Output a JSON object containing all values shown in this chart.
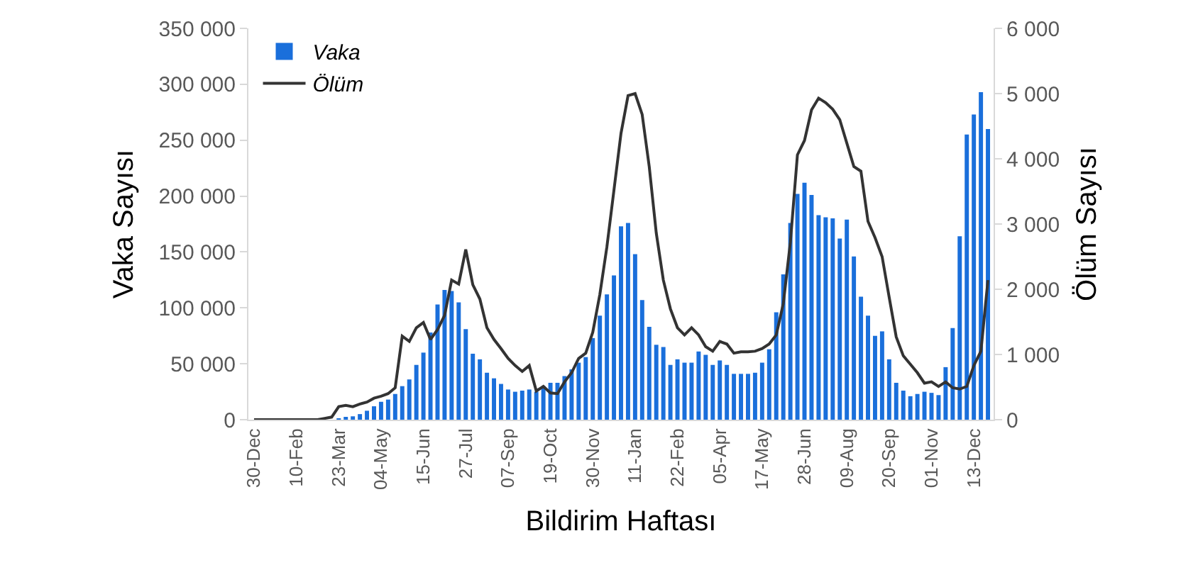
{
  "chart_data": {
    "type": "bar",
    "xlabel": "Bildirim Haftası",
    "ylabel": "Vaka Sayısı",
    "y2label": "Ölüm Sayısı",
    "legend": "top left",
    "categories": [
      "30-Dec",
      null,
      null,
      null,
      null,
      null,
      "10-Feb",
      null,
      null,
      null,
      null,
      null,
      "23-Mar",
      null,
      null,
      null,
      null,
      null,
      "04-May",
      null,
      null,
      null,
      null,
      null,
      "15-Jun",
      null,
      null,
      null,
      null,
      null,
      "27-Jul",
      null,
      null,
      null,
      null,
      null,
      "07-Sep",
      null,
      null,
      null,
      null,
      null,
      "19-Oct",
      null,
      null,
      null,
      null,
      null,
      "30-Nov",
      null,
      null,
      null,
      null,
      null,
      "11-Jan",
      null,
      null,
      null,
      null,
      null,
      "22-Feb",
      null,
      null,
      null,
      null,
      null,
      "05-Apr",
      null,
      null,
      null,
      null,
      null,
      "17-May",
      null,
      null,
      null,
      null,
      null,
      "28-Jun",
      null,
      null,
      null,
      null,
      null,
      "09-Aug",
      null,
      null,
      null,
      null,
      null,
      "20-Sep",
      null,
      null,
      null,
      null,
      null,
      "01-Nov",
      null,
      null,
      null,
      null,
      null,
      "13-Dec",
      null,
      null
    ],
    "ylim": [
      0,
      350000
    ],
    "yticks": [
      0,
      {
        "value": 50000,
        "label": "50 000"
      },
      {
        "value": 100000,
        "label": "100 000"
      },
      {
        "value": 150000,
        "label": "150 000"
      },
      {
        "value": 200000,
        "label": "200 000"
      },
      {
        "value": 250000,
        "label": "250 000"
      },
      {
        "value": 300000,
        "label": "300 000"
      },
      {
        "value": 350000,
        "label": "350 000"
      }
    ],
    "y2lim": [
      0,
      6000
    ],
    "y2ticks": [
      0,
      {
        "value": 1000,
        "label": "1 000"
      },
      {
        "value": 2000,
        "label": "2 000"
      },
      {
        "value": 3000,
        "label": "3 000"
      },
      {
        "value": 4000,
        "label": "4 000"
      },
      {
        "value": 5000,
        "label": "5 000"
      },
      {
        "value": 6000,
        "label": "6 000"
      }
    ],
    "series": [
      {
        "name": "Vaka",
        "color": "#1a6fdb",
        "values": [
          0,
          0,
          0,
          0,
          0,
          0,
          0,
          0,
          0,
          0,
          0,
          0,
          1000,
          2000,
          3000,
          5000,
          8000,
          12000,
          16000,
          18000,
          23000,
          30000,
          36000,
          49000,
          60000,
          78000,
          103000,
          116000,
          115000,
          105000,
          81000,
          59000,
          54000,
          42000,
          37000,
          32000,
          27000,
          25000,
          26000,
          27000,
          25000,
          30000,
          33000,
          33000,
          39000,
          45000,
          51000,
          56000,
          73000,
          93000,
          112000,
          129000,
          173000,
          176000,
          148000,
          107000,
          83000,
          67000,
          65000,
          49000,
          54000,
          51000,
          51000,
          61000,
          58000,
          49000,
          53000,
          49000,
          41000,
          41000,
          41000,
          42000,
          51000,
          63000,
          96000,
          130000,
          176000,
          202000,
          212000,
          201000,
          183000,
          181000,
          180000,
          162000,
          179000,
          146000,
          110000,
          93000,
          75000,
          79000,
          54000,
          33000,
          26000,
          21000,
          23000,
          25000,
          24000,
          22000,
          47000,
          82000,
          164000,
          255000,
          273000,
          293000,
          260000
        ]
      },
      {
        "name": "Ölüm",
        "type": "line",
        "axis": "y2",
        "color": "#333333",
        "values": [
          0,
          0,
          0,
          0,
          0,
          0,
          0,
          0,
          0,
          0,
          20,
          40,
          200,
          220,
          200,
          240,
          270,
          330,
          360,
          400,
          490,
          1280,
          1200,
          1410,
          1490,
          1230,
          1380,
          1600,
          2140,
          2080,
          2610,
          2070,
          1850,
          1410,
          1230,
          1090,
          940,
          830,
          740,
          830,
          440,
          510,
          410,
          400,
          580,
          720,
          940,
          1020,
          1340,
          1920,
          2650,
          3520,
          4390,
          4970,
          5000,
          4680,
          3880,
          2860,
          2140,
          1700,
          1410,
          1300,
          1410,
          1300,
          1120,
          1050,
          1200,
          1160,
          1020,
          1040,
          1040,
          1050,
          1090,
          1160,
          1300,
          1780,
          2720,
          4060,
          4280,
          4750,
          4930,
          4860,
          4760,
          4600,
          4240,
          3880,
          3810,
          3040,
          2790,
          2500,
          1880,
          1270,
          980,
          850,
          720,
          560,
          580,
          510,
          580,
          490,
          470,
          510,
          830,
          1050,
          2140
        ]
      }
    ]
  }
}
